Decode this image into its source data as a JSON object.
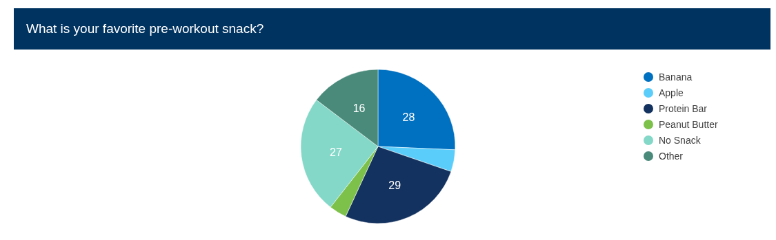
{
  "chart_data": {
    "type": "pie",
    "title": "What is your favorite pre-workout snack?",
    "categories": [
      "Banana",
      "Apple",
      "Protein Bar",
      "Peanut Butter",
      "No Snack",
      "Other"
    ],
    "values": [
      28,
      5,
      29,
      4,
      27,
      16
    ],
    "value_labels": [
      "28",
      null,
      "29",
      null,
      "27",
      "16"
    ],
    "colors": [
      "#0070c0",
      "#5bcdfa",
      "#14325f",
      "#7dc14b",
      "#84d8c8",
      "#4a8a7a"
    ],
    "legend": "top right"
  }
}
